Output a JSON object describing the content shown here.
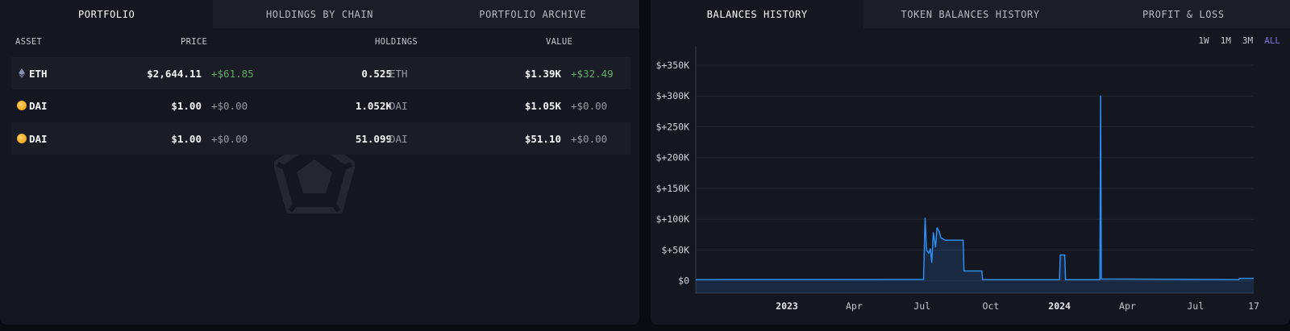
{
  "portfolio": {
    "tabs": [
      {
        "label": "PORTFOLIO",
        "active": true
      },
      {
        "label": "HOLDINGS BY CHAIN",
        "active": false
      },
      {
        "label": "PORTFOLIO ARCHIVE",
        "active": false
      }
    ],
    "columns": {
      "asset": "ASSET",
      "price": "PRICE",
      "holdings": "HOLDINGS",
      "value": "VALUE"
    },
    "rows": [
      {
        "symbol": "ETH",
        "icon": "ethereum-icon",
        "price": "$2,644.11",
        "price_change": "+$61.85",
        "holdings": "0.525",
        "holdings_unit": "ETH",
        "value": "$1.39K",
        "value_change": "+$32.49"
      },
      {
        "symbol": "DAI",
        "icon": "dai-coin-icon",
        "price": "$1.00",
        "price_change": "+$0.00",
        "holdings": "1.052K",
        "holdings_unit": "DAI",
        "value": "$1.05K",
        "value_change": "+$0.00"
      },
      {
        "symbol": "DAI",
        "icon": "dai-coin-icon",
        "price": "$1.00",
        "price_change": "+$0.00",
        "holdings": "51.099",
        "holdings_unit": "DAI",
        "value": "$51.10",
        "value_change": "+$0.00"
      }
    ],
    "colors": {
      "positive": "#5fa866"
    }
  },
  "history": {
    "tabs": [
      {
        "label": "BALANCES HISTORY",
        "active": true
      },
      {
        "label": "TOKEN BALANCES HISTORY",
        "active": false
      },
      {
        "label": "PROFIT & LOSS",
        "active": false
      }
    ],
    "ranges": [
      {
        "label": "1W",
        "selected": false
      },
      {
        "label": "1M",
        "selected": false
      },
      {
        "label": "3M",
        "selected": false
      },
      {
        "label": "ALL",
        "selected": true
      }
    ]
  },
  "chart_data": {
    "type": "area",
    "title": "",
    "xlabel": "",
    "ylabel": "",
    "x_domain": [
      "2022-09-01",
      "2024-09-17"
    ],
    "ylim": [
      -20000,
      380000
    ],
    "y_ticks": [
      {
        "value": 0,
        "label": "$0"
      },
      {
        "value": 50000,
        "label": "$+50K"
      },
      {
        "value": 100000,
        "label": "$+100K"
      },
      {
        "value": 150000,
        "label": "$+150K"
      },
      {
        "value": 200000,
        "label": "$+200K"
      },
      {
        "value": 250000,
        "label": "$+250K"
      },
      {
        "value": 300000,
        "label": "$+300K"
      },
      {
        "value": 350000,
        "label": "$+350K"
      }
    ],
    "x_ticks": [
      {
        "date": "2023-01-01",
        "label": "2023",
        "bold": true
      },
      {
        "date": "2023-04-01",
        "label": "Apr",
        "bold": false
      },
      {
        "date": "2023-07-01",
        "label": "Jul",
        "bold": false
      },
      {
        "date": "2023-10-01",
        "label": "Oct",
        "bold": false
      },
      {
        "date": "2024-01-01",
        "label": "2024",
        "bold": true
      },
      {
        "date": "2024-04-01",
        "label": "Apr",
        "bold": false
      },
      {
        "date": "2024-07-01",
        "label": "Jul",
        "bold": false
      },
      {
        "date": "2024-09-17",
        "label": "17",
        "bold": false
      }
    ],
    "grid": true,
    "legend": "none",
    "series": [
      {
        "color": "#2f8cf0",
        "points": [
          {
            "x": "2022-09-01",
            "y": 2000
          },
          {
            "x": "2023-07-03",
            "y": 2200
          },
          {
            "x": "2023-07-05",
            "y": 102000
          },
          {
            "x": "2023-07-07",
            "y": 50000
          },
          {
            "x": "2023-07-10",
            "y": 45000
          },
          {
            "x": "2023-07-12",
            "y": 52000
          },
          {
            "x": "2023-07-14",
            "y": 30000
          },
          {
            "x": "2023-07-16",
            "y": 78000
          },
          {
            "x": "2023-07-19",
            "y": 55000
          },
          {
            "x": "2023-07-21",
            "y": 86000
          },
          {
            "x": "2023-07-24",
            "y": 80000
          },
          {
            "x": "2023-07-26",
            "y": 70000
          },
          {
            "x": "2023-08-01",
            "y": 66000
          },
          {
            "x": "2023-08-25",
            "y": 66000
          },
          {
            "x": "2023-08-26",
            "y": 16000
          },
          {
            "x": "2023-09-19",
            "y": 16000
          },
          {
            "x": "2023-09-20",
            "y": 2000
          },
          {
            "x": "2024-01-01",
            "y": 2000
          },
          {
            "x": "2024-01-02",
            "y": 42000
          },
          {
            "x": "2024-01-08",
            "y": 42000
          },
          {
            "x": "2024-01-09",
            "y": 2000
          },
          {
            "x": "2024-02-24",
            "y": 2000
          },
          {
            "x": "2024-02-25",
            "y": 300000
          },
          {
            "x": "2024-02-26",
            "y": 3000
          },
          {
            "x": "2024-08-28",
            "y": 2000
          },
          {
            "x": "2024-08-29",
            "y": 4000
          },
          {
            "x": "2024-09-17",
            "y": 4000
          }
        ]
      }
    ]
  }
}
